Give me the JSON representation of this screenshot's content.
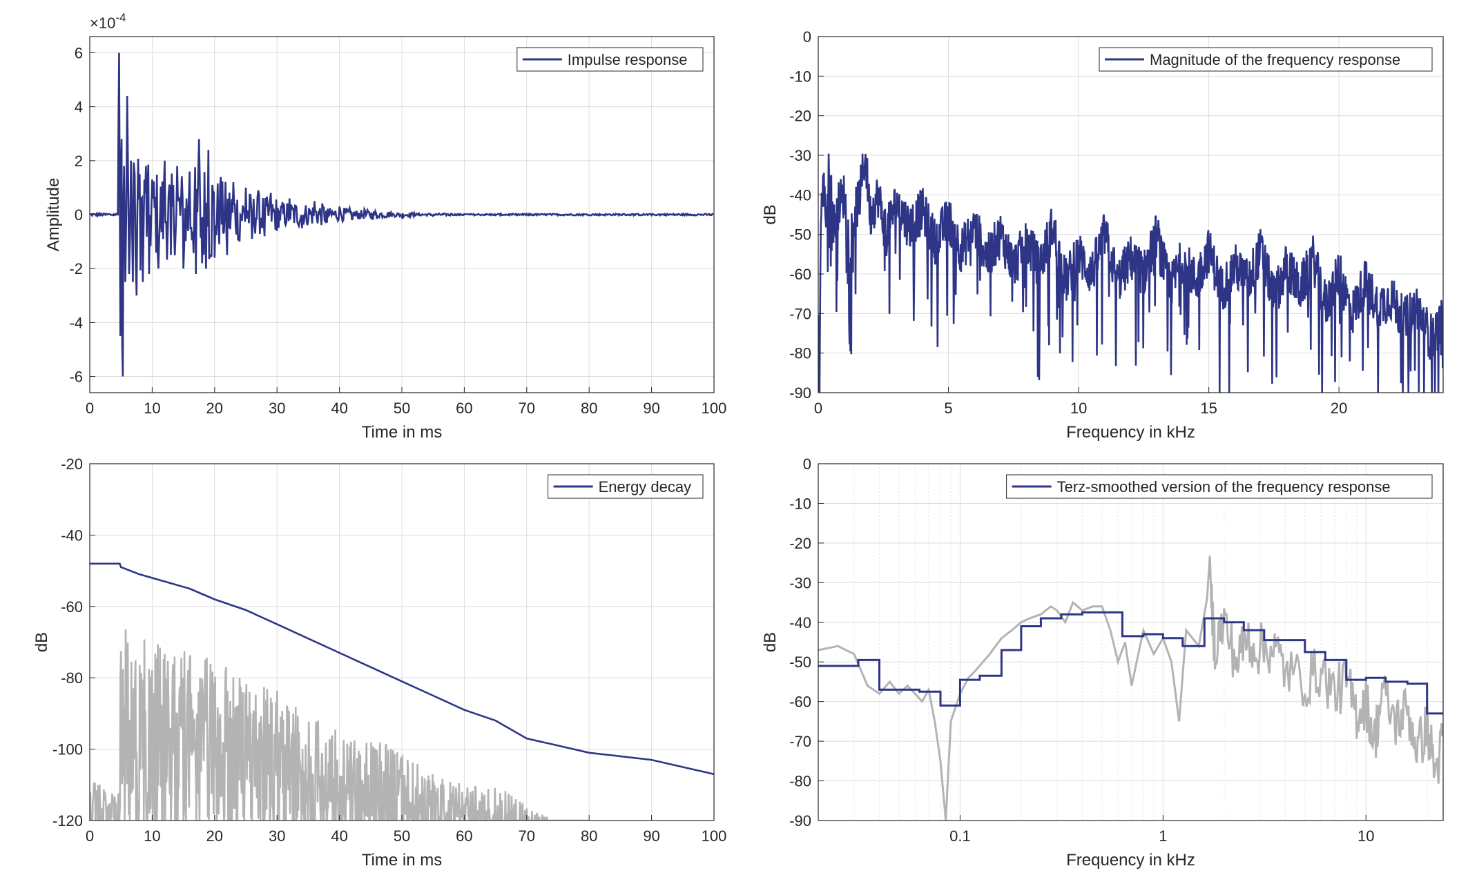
{
  "chart_data": [
    {
      "id": "impulse",
      "type": "line",
      "xlabel": "Time in ms",
      "ylabel": "Amplitude",
      "exponent": "×10",
      "exponent_power": "-4",
      "xlim": [
        0,
        100
      ],
      "ylim": [
        -6.6,
        6.6
      ],
      "xticks": [
        "0",
        "10",
        "20",
        "30",
        "40",
        "50",
        "60",
        "70",
        "80",
        "90",
        "100"
      ],
      "yticks": [
        "-6",
        "-4",
        "-2",
        "0",
        "2",
        "4",
        "6"
      ],
      "ytick_values": [
        -6,
        -4,
        -2,
        0,
        2,
        4,
        6
      ],
      "xtick_values": [
        0,
        10,
        20,
        30,
        40,
        50,
        60,
        70,
        80,
        90,
        100
      ],
      "grid": true,
      "legend_position": "top-right",
      "series": [
        {
          "name": "Impulse response",
          "color": "#2e3586",
          "x": [
            0,
            4.5,
            4.7,
            4.9,
            5.1,
            5.3,
            5.5,
            5.7,
            6.0,
            6.3,
            6.6,
            6.9,
            7.2,
            7.5,
            8.0,
            8.5,
            9,
            9.5,
            10,
            11,
            12,
            13,
            14,
            15,
            16,
            17,
            17.5,
            18,
            19,
            20,
            21,
            22,
            23,
            24,
            25,
            26,
            27,
            28,
            29,
            30,
            32,
            34,
            36,
            38,
            40,
            42,
            44,
            46,
            48,
            50,
            52,
            55,
            58,
            60,
            65,
            70,
            80,
            90,
            100
          ],
          "y": [
            0,
            0,
            6.0,
            -4.5,
            2.8,
            -6.0,
            1.8,
            -2.5,
            4.4,
            -2.2,
            2.0,
            -2.5,
            1.5,
            -3.0,
            1.5,
            -2.5,
            1.8,
            -2.2,
            1.3,
            -2.0,
            2.0,
            -1.5,
            1.8,
            -2.0,
            1.6,
            -2.2,
            2.8,
            -1.8,
            2.4,
            -1.6,
            1.4,
            -1.5,
            1.2,
            -1.0,
            1.0,
            -0.9,
            0.9,
            -0.8,
            0.8,
            -0.6,
            0.6,
            -0.5,
            0.5,
            -0.3,
            0.3,
            -0.2,
            0.2,
            -0.15,
            0.1,
            -0.1,
            0.05,
            -0.05,
            0.03,
            0.02,
            0.01,
            0,
            0,
            0,
            0
          ]
        }
      ]
    },
    {
      "id": "magnitude",
      "type": "line",
      "xlabel": "Frequency in kHz",
      "ylabel": "dB",
      "xlim": [
        0,
        24
      ],
      "ylim": [
        -90,
        0
      ],
      "xticks": [
        "0",
        "5",
        "10",
        "15",
        "20"
      ],
      "xtick_values": [
        0,
        5,
        10,
        15,
        20
      ],
      "yticks": [
        "0",
        "-10",
        "-20",
        "-30",
        "-40",
        "-50",
        "-60",
        "-70",
        "-80",
        "-90"
      ],
      "ytick_values": [
        0,
        -10,
        -20,
        -30,
        -40,
        -50,
        -60,
        -70,
        -80,
        -90
      ],
      "grid": true,
      "legend_position": "top-right",
      "series": [
        {
          "name": "Magnitude of the frequency response",
          "color": "#2e3586",
          "x": [
            0,
            0.05,
            0.1,
            0.15,
            0.2,
            0.3,
            0.4,
            0.5,
            0.6,
            0.8,
            1.0,
            1.2,
            1.4,
            1.6,
            1.8,
            2.0,
            2.3,
            2.6,
            3.0,
            3.5,
            4.0,
            4.5,
            5.0,
            5.5,
            6.0,
            6.5,
            7.0,
            7.5,
            8.0,
            8.5,
            9.0,
            9.5,
            10,
            10.5,
            11,
            11.5,
            12,
            12.5,
            13,
            13.5,
            14,
            14.5,
            15,
            15.5,
            16,
            16.5,
            17,
            17.5,
            18,
            18.5,
            19,
            19.5,
            20,
            20.5,
            21,
            21.5,
            22,
            22.5,
            23,
            23.5,
            24
          ],
          "y": [
            -70,
            -90,
            -45,
            -42,
            -38,
            -45,
            -35,
            -40,
            -48,
            -42,
            -40,
            -52,
            -45,
            -40,
            -30,
            -45,
            -40,
            -50,
            -42,
            -48,
            -44,
            -52,
            -46,
            -54,
            -48,
            -56,
            -50,
            -58,
            -52,
            -58,
            -48,
            -62,
            -55,
            -60,
            -50,
            -62,
            -56,
            -60,
            -50,
            -64,
            -56,
            -62,
            -54,
            -64,
            -58,
            -62,
            -54,
            -66,
            -58,
            -64,
            -56,
            -68,
            -60,
            -70,
            -62,
            -68,
            -66,
            -72,
            -68,
            -76,
            -72
          ]
        }
      ]
    },
    {
      "id": "energy",
      "type": "line",
      "xlabel": "Time in ms",
      "ylabel": "dB",
      "xlim": [
        0,
        100
      ],
      "ylim": [
        -120,
        -20
      ],
      "xticks": [
        "0",
        "10",
        "20",
        "30",
        "40",
        "50",
        "60",
        "70",
        "80",
        "90",
        "100"
      ],
      "xtick_values": [
        0,
        10,
        20,
        30,
        40,
        50,
        60,
        70,
        80,
        90,
        100
      ],
      "yticks": [
        "-20",
        "-40",
        "-60",
        "-80",
        "-100",
        "-120"
      ],
      "ytick_values": [
        -20,
        -40,
        -60,
        -80,
        -100,
        -120
      ],
      "grid": true,
      "legend_position": "top-right",
      "series": [
        {
          "name": "Energy decay",
          "color": "#2e3586",
          "x": [
            0,
            4.8,
            5,
            8,
            12,
            16,
            20,
            25,
            30,
            35,
            40,
            45,
            50,
            55,
            60,
            65,
            68,
            70,
            75,
            80,
            85,
            90,
            95,
            100
          ],
          "y": [
            -48,
            -48,
            -49,
            -51,
            -53,
            -55,
            -58,
            -61,
            -65,
            -69,
            -73,
            -77,
            -81,
            -85,
            -89,
            -92,
            -95,
            -97,
            -99,
            -101,
            -102,
            -103,
            -105,
            -107
          ]
        },
        {
          "name": "",
          "color": "#b3b3b3",
          "x": [
            0,
            4.5,
            5,
            10,
            15,
            20,
            25,
            30,
            35,
            40,
            45,
            50,
            55,
            60,
            65,
            70,
            72,
            75,
            80
          ],
          "y_top": [
            -108,
            -112,
            -65,
            -70,
            -72,
            -75,
            -80,
            -82,
            -90,
            -95,
            -97,
            -100,
            -107,
            -110,
            -110,
            -115,
            -118,
            -120,
            -120
          ],
          "y_bottom": [
            -120,
            -120,
            -120,
            -120,
            -120,
            -120,
            -120,
            -120,
            -120,
            -120,
            -120,
            -120,
            -120,
            -120,
            -120,
            -120,
            -120,
            -120,
            -120
          ]
        }
      ]
    },
    {
      "id": "terz",
      "type": "line",
      "xscale": "log",
      "xlabel": "Frequency in kHz",
      "ylabel": "dB",
      "xlim": [
        0.02,
        24
      ],
      "ylim": [
        -90,
        0
      ],
      "xticks": [
        "0.1",
        "1",
        "10"
      ],
      "xtick_values": [
        0.1,
        1,
        10
      ],
      "yticks": [
        "0",
        "-10",
        "-20",
        "-30",
        "-40",
        "-50",
        "-60",
        "-70",
        "-80",
        "-90"
      ],
      "ytick_values": [
        0,
        -10,
        -20,
        -30,
        -40,
        -50,
        -60,
        -70,
        -80,
        -90
      ],
      "grid": true,
      "legend_position": "top-right",
      "series": [
        {
          "name": "Terz-smoothed version of the frequency response",
          "color": "#2e3586",
          "steps_x": [
            0.02,
            0.025,
            0.0315,
            0.04,
            0.05,
            0.063,
            0.08,
            0.1,
            0.125,
            0.16,
            0.2,
            0.25,
            0.315,
            0.4,
            0.5,
            0.63,
            0.8,
            1.0,
            1.25,
            1.6,
            2.0,
            2.5,
            3.15,
            4.0,
            5.0,
            6.3,
            8.0,
            10,
            12.5,
            16,
            20,
            24
          ],
          "steps_y": [
            -51,
            -51,
            -49.5,
            -57,
            -57,
            -57.5,
            -61,
            -54.5,
            -53.5,
            -47,
            -41,
            -39,
            -38,
            -37.5,
            -37.5,
            -43.5,
            -43,
            -44,
            -46,
            -39,
            -40,
            -42,
            -44.5,
            -44.5,
            -47.5,
            -49.5,
            -54.5,
            -54,
            -55,
            -55.5,
            -63,
            -63
          ]
        },
        {
          "name": "",
          "color": "#b3b3b3",
          "x": [
            0.02,
            0.025,
            0.03,
            0.035,
            0.04,
            0.045,
            0.05,
            0.055,
            0.06,
            0.065,
            0.07,
            0.075,
            0.08,
            0.085,
            0.09,
            0.1,
            0.11,
            0.12,
            0.14,
            0.16,
            0.18,
            0.2,
            0.22,
            0.25,
            0.28,
            0.3,
            0.33,
            0.36,
            0.4,
            0.45,
            0.5,
            0.55,
            0.6,
            0.65,
            0.7,
            0.8,
            0.9,
            1.0,
            1.1,
            1.2,
            1.3,
            1.5,
            1.7,
            1.8,
            2.0,
            2.3,
            2.6,
            3.0,
            3.5,
            4.0,
            5.0,
            6.0,
            7.0,
            8.0,
            9.0,
            10,
            11,
            12,
            14,
            16,
            18,
            20,
            22,
            24
          ],
          "y": [
            -47,
            -46,
            -48,
            -56,
            -58,
            -55,
            -58,
            -56,
            -58,
            -60,
            -57,
            -65,
            -75,
            -90,
            -65,
            -58,
            -54,
            -52,
            -48,
            -44,
            -42,
            -40,
            -39,
            -38,
            -36,
            -37,
            -40,
            -35,
            -37,
            -36,
            -36,
            -42,
            -50,
            -45,
            -56,
            -42,
            -48,
            -44,
            -50,
            -65,
            -42,
            -46,
            -30,
            -46,
            -40,
            -50,
            -44,
            -47,
            -46,
            -52,
            -55,
            -52,
            -58,
            -55,
            -63,
            -60,
            -70,
            -58,
            -65,
            -62,
            -72,
            -66,
            -78,
            -70
          ]
        }
      ]
    }
  ]
}
